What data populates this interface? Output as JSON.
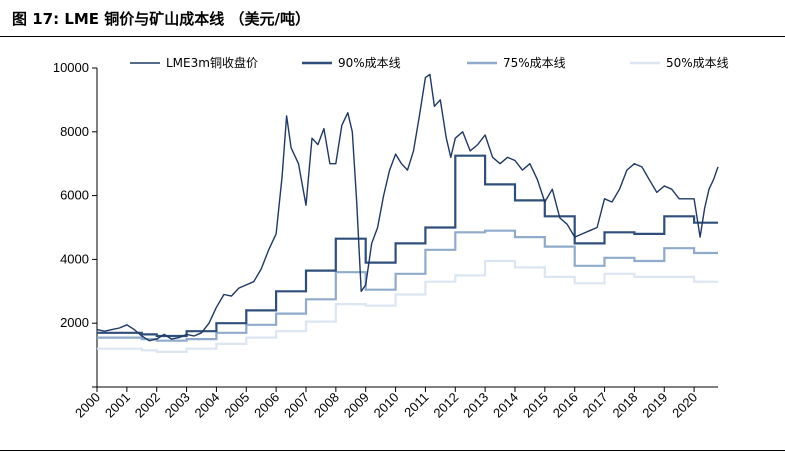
{
  "figure": {
    "title": "图 17: LME 铜价与矿山成本线 （美元/吨）"
  },
  "colors": {
    "lme": "#1f3864",
    "c90": "#2f4f7a",
    "c75": "#8faacb",
    "c50": "#dce5f2"
  },
  "chart_data": {
    "type": "line",
    "title": "",
    "xlabel": "",
    "ylabel": "",
    "ylim": [
      0,
      10000
    ],
    "xlim": [
      2000,
      2020.8
    ],
    "yticks": [
      0,
      2000,
      4000,
      6000,
      8000,
      10000
    ],
    "ytick_labels": [
      "",
      "2000",
      "4000",
      "6000",
      "8000",
      "10000"
    ],
    "xticks": [
      "2000",
      "2001",
      "2002",
      "2003",
      "2004",
      "2005",
      "2006",
      "2007",
      "2008",
      "2009",
      "2010",
      "2011",
      "2012",
      "2013",
      "2014",
      "2015",
      "2016",
      "2017",
      "2018",
      "2019",
      "2020"
    ],
    "legend_position": "top",
    "grid": false,
    "series": [
      {
        "name": "LME3m铜收盘价",
        "kind": "line",
        "color": "#1f3864",
        "x": [
          2000.0,
          2000.25,
          2000.5,
          2000.75,
          2001.0,
          2001.25,
          2001.5,
          2001.75,
          2002.0,
          2002.25,
          2002.5,
          2002.75,
          2003.0,
          2003.25,
          2003.5,
          2003.75,
          2004.0,
          2004.25,
          2004.5,
          2004.75,
          2005.0,
          2005.25,
          2005.5,
          2005.75,
          2006.0,
          2006.2,
          2006.35,
          2006.5,
          2006.75,
          2007.0,
          2007.2,
          2007.4,
          2007.6,
          2007.8,
          2008.0,
          2008.2,
          2008.4,
          2008.55,
          2008.7,
          2008.85,
          2009.0,
          2009.2,
          2009.4,
          2009.6,
          2009.8,
          2010.0,
          2010.2,
          2010.4,
          2010.6,
          2010.8,
          2011.0,
          2011.15,
          2011.3,
          2011.5,
          2011.7,
          2011.85,
          2012.0,
          2012.25,
          2012.5,
          2012.75,
          2013.0,
          2013.25,
          2013.5,
          2013.75,
          2014.0,
          2014.25,
          2014.5,
          2014.75,
          2015.0,
          2015.25,
          2015.5,
          2015.75,
          2016.0,
          2016.25,
          2016.5,
          2016.75,
          2017.0,
          2017.25,
          2017.5,
          2017.75,
          2018.0,
          2018.25,
          2018.5,
          2018.75,
          2019.0,
          2019.25,
          2019.5,
          2019.75,
          2020.0,
          2020.2,
          2020.35,
          2020.5,
          2020.65,
          2020.8
        ],
        "y": [
          1800,
          1750,
          1800,
          1850,
          1950,
          1800,
          1600,
          1450,
          1500,
          1650,
          1500,
          1550,
          1650,
          1600,
          1700,
          2000,
          2500,
          2900,
          2850,
          3100,
          3200,
          3300,
          3700,
          4300,
          4800,
          6600,
          8500,
          7500,
          7000,
          5700,
          7800,
          7600,
          8100,
          7000,
          7000,
          8200,
          8600,
          8000,
          5800,
          3000,
          3200,
          4500,
          5000,
          6000,
          6800,
          7300,
          7000,
          6800,
          7400,
          8500,
          9700,
          9800,
          8800,
          9000,
          7800,
          7200,
          7800,
          8000,
          7400,
          7600,
          7900,
          7200,
          7000,
          7200,
          7100,
          6800,
          7000,
          6500,
          5800,
          6200,
          5300,
          5100,
          4700,
          4800,
          4900,
          5000,
          5900,
          5800,
          6200,
          6800,
          7000,
          6900,
          6500,
          6100,
          6300,
          6200,
          5900,
          5900,
          5900,
          4700,
          5600,
          6200,
          6500,
          6900
        ]
      },
      {
        "name": "90%成本线",
        "kind": "step",
        "color": "#2f4f7a",
        "x": [
          2000.0,
          2001.5,
          2002.0,
          2003.0,
          2004.0,
          2005.0,
          2006.0,
          2007.0,
          2008.0,
          2009.0,
          2010.0,
          2011.0,
          2012.0,
          2013.0,
          2014.0,
          2015.0,
          2016.0,
          2017.0,
          2018.0,
          2019.0,
          2020.0
        ],
        "y": [
          1700,
          1650,
          1600,
          1750,
          2000,
          2400,
          3000,
          3650,
          4650,
          3900,
          4500,
          5000,
          7250,
          6350,
          5850,
          5350,
          4500,
          4850,
          4800,
          5350,
          5150
        ]
      },
      {
        "name": "75%成本线",
        "kind": "step",
        "color": "#8faacb",
        "x": [
          2000.0,
          2001.5,
          2002.0,
          2003.0,
          2004.0,
          2005.0,
          2006.0,
          2007.0,
          2008.0,
          2009.0,
          2010.0,
          2011.0,
          2012.0,
          2013.0,
          2014.0,
          2015.0,
          2016.0,
          2017.0,
          2018.0,
          2019.0,
          2020.0
        ],
        "y": [
          1550,
          1500,
          1450,
          1500,
          1700,
          1950,
          2300,
          2750,
          3600,
          3050,
          3550,
          4300,
          4850,
          4900,
          4700,
          4400,
          3800,
          4050,
          3950,
          4350,
          4200
        ]
      },
      {
        "name": "50%成本线",
        "kind": "step",
        "color": "#dce5f2",
        "x": [
          2000.0,
          2001.5,
          2002.0,
          2003.0,
          2004.0,
          2005.0,
          2006.0,
          2007.0,
          2008.0,
          2009.0,
          2010.0,
          2011.0,
          2012.0,
          2013.0,
          2014.0,
          2015.0,
          2016.0,
          2017.0,
          2018.0,
          2019.0,
          2020.0
        ],
        "y": [
          1200,
          1150,
          1100,
          1200,
          1350,
          1550,
          1750,
          2050,
          2600,
          2550,
          2900,
          3300,
          3500,
          3950,
          3750,
          3450,
          3250,
          3550,
          3450,
          3450,
          3300
        ]
      }
    ]
  }
}
